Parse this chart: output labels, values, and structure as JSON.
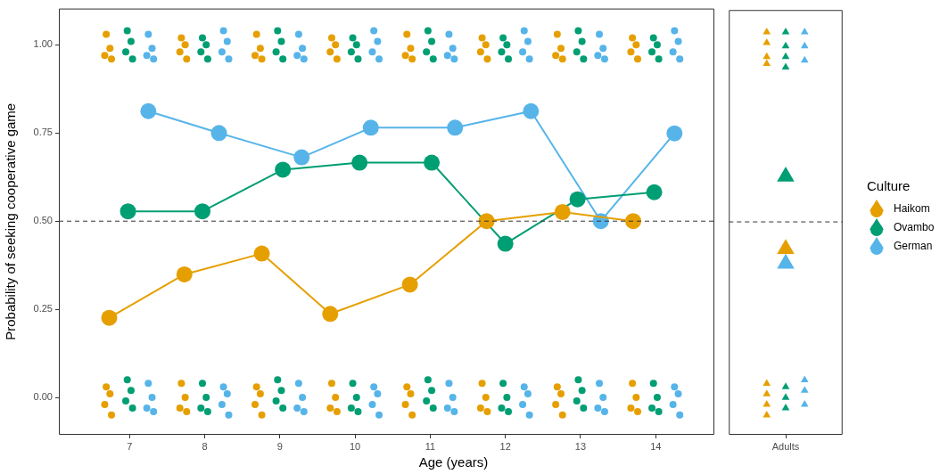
{
  "chart_data": [
    {
      "type": "line",
      "xlabel": "Age (years)",
      "ylabel": "Probability of seeking cooperative game",
      "legend_title": "Culture",
      "legend": "right",
      "xlim": [
        6.06,
        14.78
      ],
      "ylim": [
        -0.106,
        1.103
      ],
      "xticks": [
        7,
        8,
        9,
        10,
        11,
        12,
        13,
        14
      ],
      "yticks": [
        {
          "value": 0,
          "label": "0.00"
        },
        {
          "value": 0.25,
          "label": "0.25"
        },
        {
          "value": 0.5,
          "label": "0.50"
        },
        {
          "value": 0.75,
          "label": "0.75"
        },
        {
          "value": 1,
          "label": "1.00"
        }
      ],
      "ref_lines": [
        {
          "axis": "y",
          "value": 0.5,
          "line_style": "dashed",
          "color": "#333333"
        }
      ],
      "series": [
        {
          "type": "scatter",
          "marker": "circle",
          "color": "#e69f00",
          "x": [
            6.69,
            6.74,
            6.67,
            6.76,
            6.69,
            6.74,
            6.67,
            6.76,
            7.69,
            7.74,
            7.67,
            7.76,
            7.69,
            7.74,
            7.67,
            7.76,
            8.69,
            8.74,
            8.67,
            8.76,
            8.69,
            8.74,
            8.67,
            8.76,
            9.69,
            9.74,
            9.67,
            9.76,
            9.69,
            9.74,
            9.67,
            9.76,
            10.69,
            10.74,
            10.67,
            10.76,
            10.69,
            10.74,
            10.67,
            10.76,
            11.69,
            11.74,
            11.67,
            11.76,
            11.69,
            11.74,
            11.67,
            11.76,
            12.69,
            12.74,
            12.67,
            12.76,
            12.69,
            12.74,
            12.67,
            12.76,
            13.69,
            13.74,
            13.67,
            13.76,
            13.69,
            13.74,
            13.67,
            13.76
          ],
          "values": [
            1.03,
            0.99,
            0.97,
            0.96,
            0.03,
            0.01,
            -0.02,
            -0.05,
            1.02,
            1.0,
            0.98,
            0.96,
            0.04,
            0.0,
            -0.03,
            -0.04,
            1.03,
            0.99,
            0.97,
            0.96,
            0.03,
            0.01,
            -0.02,
            -0.05,
            1.02,
            1.0,
            0.98,
            0.96,
            0.04,
            0.0,
            -0.03,
            -0.04,
            1.03,
            0.99,
            0.97,
            0.96,
            0.03,
            0.01,
            -0.02,
            -0.05,
            1.02,
            1.0,
            0.98,
            0.96,
            0.04,
            0.0,
            -0.03,
            -0.04,
            1.03,
            0.99,
            0.97,
            0.96,
            0.03,
            0.01,
            -0.02,
            -0.05,
            1.02,
            1.0,
            0.98,
            0.96,
            0.04,
            0.0,
            -0.03,
            -0.04
          ]
        },
        {
          "type": "scatter",
          "marker": "circle",
          "color": "#009e73",
          "x": [
            6.97,
            7.02,
            6.95,
            7.04,
            6.97,
            7.02,
            6.95,
            7.04,
            7.97,
            8.02,
            7.95,
            8.04,
            7.97,
            8.02,
            7.95,
            8.04,
            8.97,
            9.02,
            8.95,
            9.04,
            8.97,
            9.02,
            8.95,
            9.04,
            9.97,
            10.02,
            9.95,
            10.04,
            9.97,
            10.02,
            9.95,
            10.04,
            10.97,
            11.02,
            10.95,
            11.04,
            10.97,
            11.02,
            10.95,
            11.04,
            11.97,
            12.02,
            11.95,
            12.04,
            11.97,
            12.02,
            11.95,
            12.04,
            12.97,
            13.02,
            12.95,
            13.04,
            12.97,
            13.02,
            12.95,
            13.04,
            13.97,
            14.02,
            13.95,
            14.04,
            13.97,
            14.02,
            13.95,
            14.04
          ],
          "values": [
            1.04,
            1.01,
            0.98,
            0.96,
            0.05,
            0.02,
            -0.01,
            -0.03,
            1.02,
            1.0,
            0.98,
            0.96,
            0.04,
            0.0,
            -0.03,
            -0.04,
            1.04,
            1.01,
            0.98,
            0.96,
            0.05,
            0.02,
            -0.01,
            -0.03,
            1.02,
            1.0,
            0.98,
            0.96,
            0.04,
            0.0,
            -0.03,
            -0.04,
            1.04,
            1.01,
            0.98,
            0.96,
            0.05,
            0.02,
            -0.01,
            -0.03,
            1.02,
            1.0,
            0.98,
            0.96,
            0.04,
            0.0,
            -0.03,
            -0.04,
            1.04,
            1.01,
            0.98,
            0.96,
            0.05,
            0.02,
            -0.01,
            -0.03,
            1.02,
            1.0,
            0.98,
            0.96,
            0.04,
            0.0,
            -0.03,
            -0.04
          ]
        },
        {
          "type": "scatter",
          "marker": "circle",
          "color": "#56b4e9",
          "x": [
            7.25,
            7.3,
            7.23,
            7.32,
            7.25,
            7.3,
            7.23,
            7.32,
            8.25,
            8.3,
            8.23,
            8.32,
            8.25,
            8.3,
            8.23,
            8.32,
            9.25,
            9.3,
            9.23,
            9.32,
            9.25,
            9.3,
            9.23,
            9.32,
            10.25,
            10.3,
            10.23,
            10.32,
            10.25,
            10.3,
            10.23,
            10.32,
            11.25,
            11.3,
            11.23,
            11.32,
            11.25,
            11.3,
            11.23,
            11.32,
            12.25,
            12.3,
            12.23,
            12.32,
            12.25,
            12.3,
            12.23,
            12.32,
            13.25,
            13.3,
            13.23,
            13.32,
            13.25,
            13.3,
            13.23,
            13.32,
            14.25,
            14.3,
            14.23,
            14.32,
            14.25,
            14.3,
            14.23,
            14.32
          ],
          "values": [
            1.03,
            0.99,
            0.97,
            0.96,
            0.04,
            0.0,
            -0.03,
            -0.04,
            1.04,
            1.01,
            0.98,
            0.96,
            0.03,
            0.01,
            -0.02,
            -0.05,
            1.03,
            0.99,
            0.97,
            0.96,
            0.04,
            0.0,
            -0.03,
            -0.04,
            1.04,
            1.01,
            0.98,
            0.96,
            0.03,
            0.01,
            -0.02,
            -0.05,
            1.03,
            0.99,
            0.97,
            0.96,
            0.04,
            0.0,
            -0.03,
            -0.04,
            1.04,
            1.01,
            0.98,
            0.96,
            0.03,
            0.01,
            -0.02,
            -0.05,
            1.03,
            0.99,
            0.97,
            0.96,
            0.04,
            0.0,
            -0.03,
            -0.04,
            1.04,
            1.01,
            0.98,
            0.96,
            0.03,
            0.01,
            -0.02,
            -0.05
          ]
        },
        {
          "name": "Haikom",
          "marker": "circle",
          "color": "#e69f00",
          "x": [
            6.73,
            7.73,
            8.76,
            9.67,
            10.73,
            11.75,
            12.76,
            13.7
          ],
          "values": [
            0.226,
            0.349,
            0.408,
            0.237,
            0.32,
            0.5,
            0.526,
            0.5
          ]
        },
        {
          "name": "Ovambo",
          "marker": "circle",
          "color": "#009e73",
          "x": [
            6.98,
            7.97,
            9.04,
            10.06,
            11.02,
            12.0,
            12.96,
            13.98
          ],
          "values": [
            0.528,
            0.528,
            0.646,
            0.666,
            0.666,
            0.436,
            0.562,
            0.582
          ]
        },
        {
          "name": "German",
          "marker": "circle",
          "color": "#56b4e9",
          "x": [
            7.25,
            8.19,
            9.29,
            10.21,
            11.33,
            12.34,
            13.27,
            14.25
          ],
          "values": [
            0.812,
            0.75,
            0.681,
            0.765,
            0.765,
            0.812,
            0.5,
            0.749
          ]
        }
      ]
    },
    {
      "type": "scatter",
      "categories": [
        "Adults"
      ],
      "ylim": [
        -0.106,
        1.103
      ],
      "tick_labels": "x",
      "ref_lines": [
        {
          "axis": "y",
          "value": 0.5,
          "line_style": "dashed",
          "color": "#333333"
        }
      ],
      "series": [
        {
          "marker": "triangle",
          "color": "#e69f00",
          "x": [
            "Adults",
            "Adults",
            "Adults",
            "Adults",
            "Adults",
            "Adults",
            "Adults",
            "Adults"
          ],
          "values": [
            1.04,
            1.01,
            0.97,
            0.95,
            0.04,
            0.01,
            -0.02,
            -0.05
          ]
        },
        {
          "marker": "triangle",
          "color": "#009e73",
          "x": [
            "Adults",
            "Adults",
            "Adults",
            "Adults",
            "Adults",
            "Adults",
            "Adults"
          ],
          "values": [
            1.04,
            1.0,
            0.97,
            0.94,
            0.03,
            0.0,
            -0.03
          ]
        },
        {
          "marker": "triangle",
          "color": "#56b4e9",
          "x": [
            "Adults",
            "Adults",
            "Adults",
            "Adults",
            "Adults",
            "Adults"
          ],
          "values": [
            1.04,
            1.0,
            0.96,
            0.05,
            0.02,
            -0.02
          ]
        },
        {
          "type": "line",
          "marker": "triangle",
          "color": "#e69f00",
          "x": [
            "Adults"
          ],
          "values": [
            0.423
          ]
        },
        {
          "type": "line",
          "marker": "triangle",
          "color": "#009e73",
          "x": [
            "Adults"
          ],
          "values": [
            0.629
          ]
        },
        {
          "type": "line",
          "marker": "triangle",
          "color": "#56b4e9",
          "x": [
            "Adults"
          ],
          "values": [
            0.381
          ]
        }
      ]
    }
  ]
}
